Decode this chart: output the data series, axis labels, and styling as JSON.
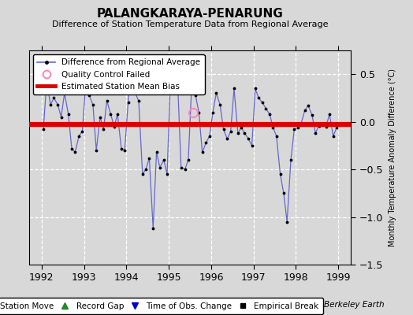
{
  "title": "PALANGKARAYA-PENARUNG",
  "subtitle": "Difference of Station Temperature Data from Regional Average",
  "ylabel": "Monthly Temperature Anomaly Difference (°C)",
  "xlim": [
    1991.7,
    1999.3
  ],
  "ylim": [
    -1.5,
    0.75
  ],
  "yticks": [
    -1.5,
    -1.0,
    -0.5,
    0.0,
    0.5
  ],
  "xticks": [
    1992,
    1993,
    1994,
    1995,
    1996,
    1997,
    1998,
    1999
  ],
  "background_color": "#d8d8d8",
  "plot_bg_color": "#d8d8d8",
  "line_color": "#6666cc",
  "bias_line_color": "#dd0000",
  "bias_y": -0.03,
  "qc_failed_x": [
    1995.58
  ],
  "qc_failed_y": [
    0.1
  ],
  "data_x": [
    1992.04,
    1992.12,
    1992.21,
    1992.29,
    1992.38,
    1992.46,
    1992.54,
    1992.63,
    1992.71,
    1992.79,
    1992.88,
    1992.96,
    1993.04,
    1993.12,
    1993.21,
    1993.29,
    1993.38,
    1993.46,
    1993.54,
    1993.63,
    1993.71,
    1993.79,
    1993.88,
    1993.96,
    1994.04,
    1994.12,
    1994.21,
    1994.29,
    1994.38,
    1994.46,
    1994.54,
    1994.63,
    1994.71,
    1994.79,
    1994.88,
    1994.96,
    1995.04,
    1995.12,
    1995.21,
    1995.29,
    1995.38,
    1995.46,
    1995.54,
    1995.63,
    1995.71,
    1995.79,
    1995.88,
    1995.96,
    1996.04,
    1996.12,
    1996.21,
    1996.29,
    1996.38,
    1996.46,
    1996.54,
    1996.63,
    1996.71,
    1996.79,
    1996.88,
    1996.96,
    1997.04,
    1997.12,
    1997.21,
    1997.29,
    1997.38,
    1997.46,
    1997.54,
    1997.63,
    1997.71,
    1997.79,
    1997.88,
    1997.96,
    1998.04,
    1998.12,
    1998.21,
    1998.29,
    1998.38,
    1998.46,
    1998.54,
    1998.63,
    1998.71,
    1998.79,
    1998.88,
    1998.96
  ],
  "data_y": [
    -0.08,
    0.42,
    0.18,
    0.25,
    0.18,
    0.05,
    0.3,
    0.08,
    -0.28,
    -0.32,
    -0.15,
    -0.1,
    0.4,
    0.28,
    0.18,
    -0.3,
    0.05,
    -0.08,
    0.22,
    0.08,
    -0.05,
    0.08,
    -0.28,
    -0.3,
    0.2,
    0.62,
    0.3,
    0.22,
    -0.55,
    -0.5,
    -0.38,
    -1.12,
    -0.32,
    -0.48,
    -0.4,
    -0.55,
    0.45,
    0.35,
    0.4,
    -0.48,
    -0.5,
    -0.4,
    0.38,
    0.28,
    0.1,
    -0.32,
    -0.22,
    -0.15,
    0.1,
    0.3,
    0.18,
    -0.08,
    -0.18,
    -0.1,
    0.35,
    -0.12,
    -0.06,
    -0.12,
    -0.18,
    -0.25,
    0.35,
    0.25,
    0.2,
    0.14,
    0.08,
    -0.06,
    -0.15,
    -0.55,
    -0.75,
    -1.05,
    -0.4,
    -0.08,
    -0.06,
    -0.02,
    0.12,
    0.17,
    0.07,
    -0.12,
    -0.04,
    -0.03,
    -0.05,
    0.08,
    -0.15,
    -0.06
  ],
  "footer_text": "Berkeley Earth",
  "legend1_entries": [
    "Difference from Regional Average",
    "Quality Control Failed",
    "Estimated Station Mean Bias"
  ],
  "legend2_entries": [
    "Station Move",
    "Record Gap",
    "Time of Obs. Change",
    "Empirical Break"
  ]
}
